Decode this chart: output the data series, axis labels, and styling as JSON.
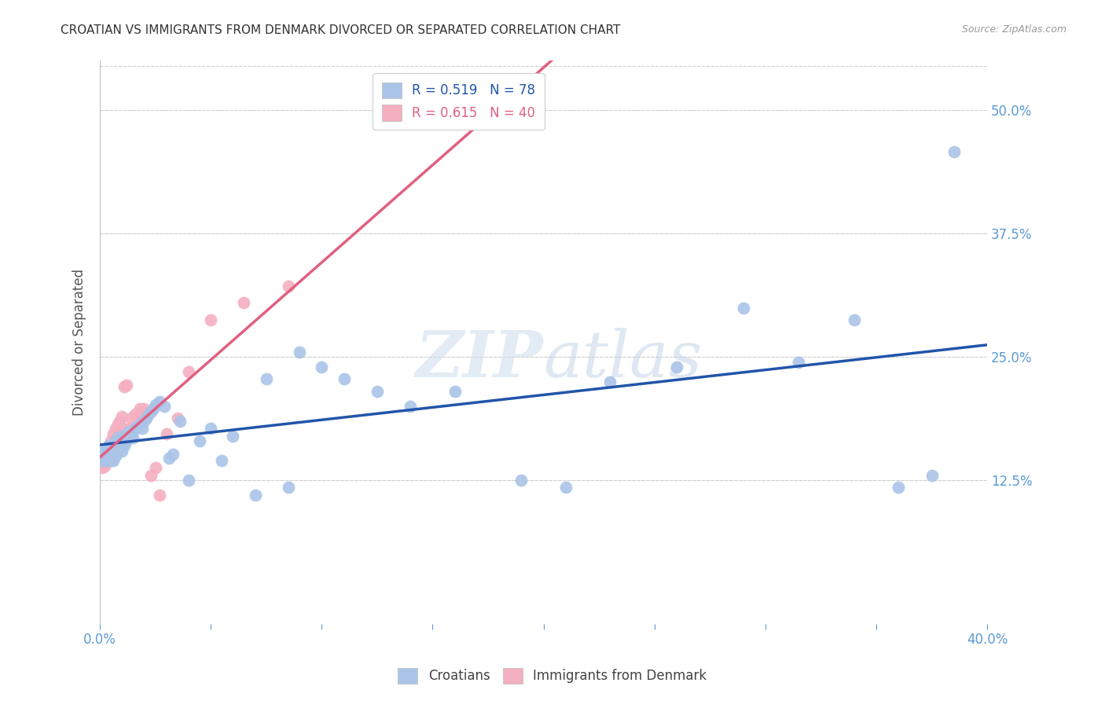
{
  "title": "CROATIAN VS IMMIGRANTS FROM DENMARK DIVORCED OR SEPARATED CORRELATION CHART",
  "source": "Source: ZipAtlas.com",
  "ylabel": "Divorced or Separated",
  "xlim": [
    0.0,
    0.4
  ],
  "ylim": [
    -0.02,
    0.55
  ],
  "ytick_labels": [
    "12.5%",
    "25.0%",
    "37.5%",
    "50.0%"
  ],
  "ytick_positions": [
    0.125,
    0.25,
    0.375,
    0.5
  ],
  "grid_color": "#d0d0d0",
  "background_color": "#ffffff",
  "watermark_zip": "ZIP",
  "watermark_atlas": "atlas",
  "croatians_color": "#aac4e8",
  "denmark_color": "#f4afc0",
  "trendline_croatians_color": "#2255aa",
  "trendline_denmark_color": "#e06080",
  "R_croatians": 0.519,
  "N_croatians": 78,
  "R_denmark": 0.615,
  "N_denmark": 40,
  "croatians_x": [
    0.001,
    0.001,
    0.002,
    0.002,
    0.002,
    0.003,
    0.003,
    0.003,
    0.003,
    0.004,
    0.004,
    0.004,
    0.004,
    0.005,
    0.005,
    0.005,
    0.006,
    0.006,
    0.006,
    0.007,
    0.007,
    0.007,
    0.008,
    0.008,
    0.008,
    0.009,
    0.009,
    0.01,
    0.01,
    0.01,
    0.011,
    0.011,
    0.012,
    0.012,
    0.013,
    0.013,
    0.014,
    0.015,
    0.015,
    0.016,
    0.017,
    0.018,
    0.019,
    0.02,
    0.021,
    0.022,
    0.023,
    0.024,
    0.025,
    0.027,
    0.029,
    0.031,
    0.033,
    0.036,
    0.04,
    0.045,
    0.05,
    0.055,
    0.06,
    0.07,
    0.075,
    0.085,
    0.09,
    0.1,
    0.11,
    0.125,
    0.14,
    0.16,
    0.19,
    0.21,
    0.23,
    0.26,
    0.29,
    0.315,
    0.34,
    0.36,
    0.375,
    0.385
  ],
  "croatians_y": [
    0.145,
    0.15,
    0.148,
    0.152,
    0.155,
    0.15,
    0.145,
    0.153,
    0.148,
    0.16,
    0.155,
    0.145,
    0.158,
    0.155,
    0.16,
    0.148,
    0.162,
    0.155,
    0.145,
    0.165,
    0.158,
    0.15,
    0.16,
    0.155,
    0.168,
    0.162,
    0.158,
    0.165,
    0.155,
    0.17,
    0.168,
    0.16,
    0.17,
    0.165,
    0.175,
    0.168,
    0.172,
    0.175,
    0.168,
    0.178,
    0.18,
    0.182,
    0.178,
    0.185,
    0.188,
    0.192,
    0.195,
    0.198,
    0.202,
    0.205,
    0.2,
    0.148,
    0.152,
    0.185,
    0.125,
    0.165,
    0.178,
    0.145,
    0.17,
    0.11,
    0.228,
    0.118,
    0.255,
    0.24,
    0.228,
    0.215,
    0.2,
    0.215,
    0.125,
    0.118,
    0.225,
    0.24,
    0.3,
    0.245,
    0.288,
    0.118,
    0.13,
    0.458
  ],
  "denmark_x": [
    0.001,
    0.001,
    0.002,
    0.002,
    0.003,
    0.003,
    0.004,
    0.004,
    0.005,
    0.005,
    0.005,
    0.006,
    0.006,
    0.007,
    0.007,
    0.008,
    0.008,
    0.009,
    0.009,
    0.01,
    0.01,
    0.011,
    0.012,
    0.013,
    0.014,
    0.015,
    0.016,
    0.017,
    0.018,
    0.02,
    0.021,
    0.023,
    0.025,
    0.027,
    0.03,
    0.035,
    0.04,
    0.05,
    0.065,
    0.085
  ],
  "denmark_y": [
    0.142,
    0.138,
    0.145,
    0.14,
    0.148,
    0.143,
    0.155,
    0.148,
    0.165,
    0.158,
    0.145,
    0.172,
    0.16,
    0.178,
    0.168,
    0.182,
    0.172,
    0.185,
    0.175,
    0.19,
    0.178,
    0.22,
    0.222,
    0.178,
    0.188,
    0.178,
    0.192,
    0.188,
    0.198,
    0.198,
    0.188,
    0.13,
    0.138,
    0.11,
    0.172,
    0.188,
    0.235,
    0.288,
    0.305,
    0.322
  ],
  "trendline_croatia_x0": 0.0,
  "trendline_croatia_x1": 0.4,
  "trendline_denmark_x0": 0.0,
  "trendline_denmark_x1": 0.4
}
